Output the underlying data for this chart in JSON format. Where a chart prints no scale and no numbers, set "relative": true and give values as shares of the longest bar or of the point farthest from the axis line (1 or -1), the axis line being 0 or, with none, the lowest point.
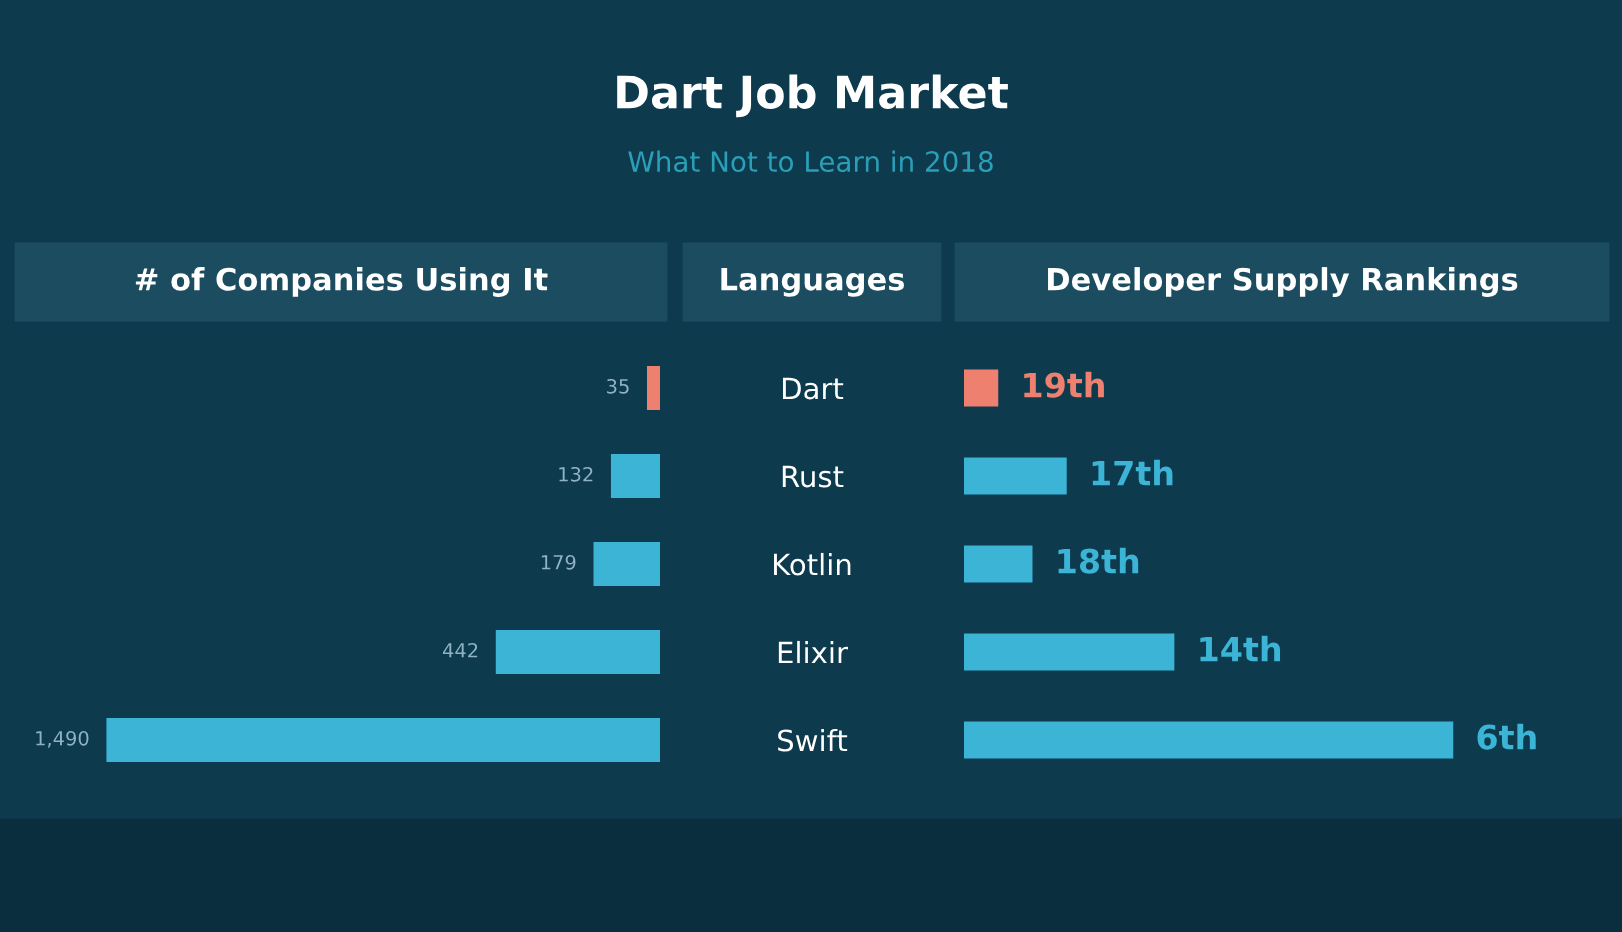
{
  "chart_data": [
    {
      "type": "bar",
      "orientation": "horizontal",
      "title": "Dart Job Market",
      "subtitle": "What Not to Learn in 2018",
      "xlabel": "# of Companies Using It",
      "categories": [
        null,
        null,
        null,
        null,
        null
      ],
      "values": [
        35,
        132,
        179,
        442,
        1490
      ],
      "value_labels": [
        "35",
        "132",
        "179",
        "442",
        "1,490"
      ],
      "colors": [
        "#ee8070",
        "#3bb4d6",
        "#3bb4d6",
        "#3bb4d6",
        "#3bb4d6"
      ],
      "tick_labels": false
    },
    {
      "type": "bar",
      "orientation": "horizontal",
      "xlabel": "Developer Supply Rankings",
      "ylabel": "Languages",
      "relative": true,
      "categories": [
        "Dart",
        "Rust",
        "Kotlin",
        "Elixir",
        "Swift"
      ],
      "values": [
        0.07,
        0.21,
        0.14,
        0.43,
        1
      ],
      "annotations": [
        {
          "text": "19th",
          "x": 0.07,
          "y": "Dart"
        },
        {
          "text": "17th",
          "x": 0.21,
          "y": "Rust"
        },
        {
          "text": "18th",
          "x": 0.14,
          "y": "Kotlin"
        },
        {
          "text": "14th",
          "x": 0.43,
          "y": "Elixir"
        },
        {
          "text": "6th",
          "x": 1,
          "y": "Swift"
        }
      ],
      "colors": [
        "#ee8070",
        "#3bb4d6",
        "#3bb4d6",
        "#3bb4d6",
        "#3bb4d6"
      ],
      "tick_labels": "y"
    }
  ]
}
